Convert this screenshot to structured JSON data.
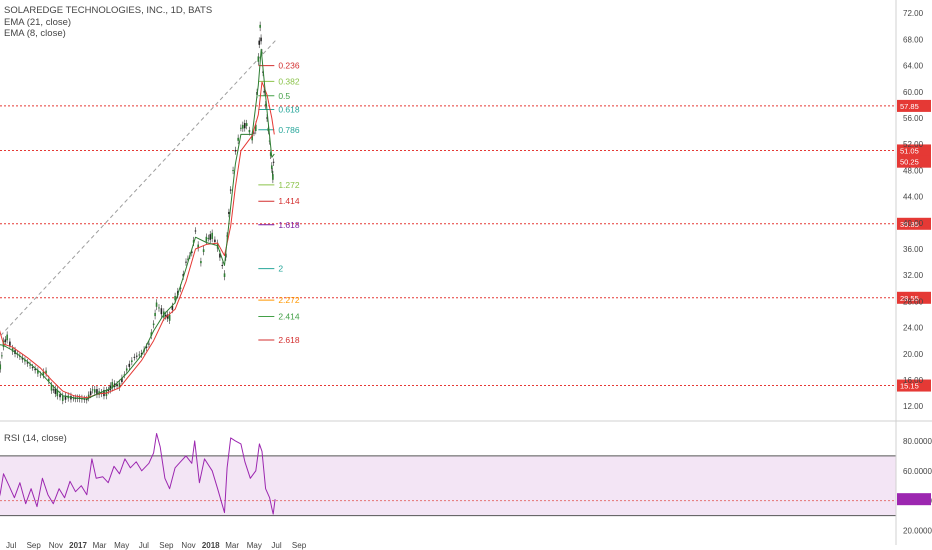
{
  "legend": {
    "title": "SOLAREDGE TECHNOLOGIES, INC., 1D, BATS",
    "ema21": "EMA (21, close)",
    "ema8": "EMA (8, close)",
    "rsi": "RSI (14, close)"
  },
  "chart_data": {
    "type": "line",
    "title": "SOLAREDGE TECHNOLOGIES, INC., 1D, BATS",
    "x_ticks": [
      "Jul",
      "Sep",
      "Nov",
      "2017",
      "Mar",
      "May",
      "Jul",
      "Sep",
      "Nov",
      "2018",
      "Mar",
      "May",
      "Jul",
      "Sep"
    ],
    "y_ticks": [
      "72.00",
      "68.00",
      "64.00",
      "60.00",
      "56.00",
      "52.00",
      "48.00",
      "44.00",
      "40.00",
      "36.00",
      "32.00",
      "28.00",
      "24.00",
      "20.00",
      "16.00",
      "12.00"
    ],
    "ylim": [
      10.5,
      72.8
    ],
    "price_series": {
      "name": "SEDG close",
      "points": [
        [
          "2016-05-20",
          20.8
        ],
        [
          "2016-06-01",
          18.0
        ],
        [
          "2016-06-10",
          21.5
        ],
        [
          "2016-06-20",
          22.5
        ],
        [
          "2016-07-05",
          20.6
        ],
        [
          "2016-07-25",
          19.6
        ],
        [
          "2016-08-15",
          18.6
        ],
        [
          "2016-09-05",
          17.6
        ],
        [
          "2016-09-20",
          16.8
        ],
        [
          "2016-10-05",
          17.2
        ],
        [
          "2016-10-20",
          14.8
        ],
        [
          "2016-11-05",
          14.0
        ],
        [
          "2016-11-20",
          13.2
        ],
        [
          "2016-12-05",
          13.4
        ],
        [
          "2016-12-20",
          13.2
        ],
        [
          "2017-01-05",
          13.2
        ],
        [
          "2017-01-25",
          13.0
        ],
        [
          "2017-02-10",
          14.5
        ],
        [
          "2017-02-28",
          14.0
        ],
        [
          "2017-03-20",
          14.0
        ],
        [
          "2017-04-05",
          15.2
        ],
        [
          "2017-04-25",
          15.2
        ],
        [
          "2017-05-15",
          17.6
        ],
        [
          "2017-06-05",
          19.5
        ],
        [
          "2017-06-25",
          20.0
        ],
        [
          "2017-07-15",
          21.5
        ],
        [
          "2017-07-28",
          24.5
        ],
        [
          "2017-08-05",
          27.5
        ],
        [
          "2017-08-25",
          26.0
        ],
        [
          "2017-09-10",
          25.5
        ],
        [
          "2017-09-25",
          28.5
        ],
        [
          "2017-10-10",
          30.0
        ],
        [
          "2017-10-25",
          34.0
        ],
        [
          "2017-11-10",
          35.5
        ],
        [
          "2017-11-20",
          38.8
        ],
        [
          "2017-12-05",
          34.0
        ],
        [
          "2017-12-20",
          37.5
        ],
        [
          "2018-01-05",
          38.0
        ],
        [
          "2018-01-20",
          36.5
        ],
        [
          "2018-02-08",
          32.0
        ],
        [
          "2018-02-15",
          38.0
        ],
        [
          "2018-02-25",
          45.0
        ],
        [
          "2018-03-10",
          51.0
        ],
        [
          "2018-03-25",
          54.5
        ],
        [
          "2018-04-10",
          55.0
        ],
        [
          "2018-04-25",
          53.0
        ],
        [
          "2018-05-05",
          54.5
        ],
        [
          "2018-05-12",
          65.0
        ],
        [
          "2018-05-17",
          70.0
        ],
        [
          "2018-05-22",
          66.0
        ],
        [
          "2018-05-28",
          60.0
        ],
        [
          "2018-06-05",
          56.0
        ],
        [
          "2018-06-12",
          52.5
        ],
        [
          "2018-06-18",
          48.5
        ],
        [
          "2018-06-21",
          47.0
        ],
        [
          "2018-06-25",
          51.5
        ]
      ]
    },
    "ema21_series": {
      "name": "EMA (21, close)",
      "color": "#e53935",
      "points": [
        [
          "2016-05-20",
          25.5
        ],
        [
          "2016-06-10",
          21.5
        ],
        [
          "2016-07-05",
          21.0
        ],
        [
          "2016-08-15",
          19.4
        ],
        [
          "2016-09-20",
          17.8
        ],
        [
          "2016-10-20",
          16.0
        ],
        [
          "2016-11-20",
          14.3
        ],
        [
          "2016-12-20",
          13.6
        ],
        [
          "2017-01-25",
          13.3
        ],
        [
          "2017-02-28",
          13.9
        ],
        [
          "2017-03-20",
          14.0
        ],
        [
          "2017-04-25",
          14.8
        ],
        [
          "2017-05-15",
          16.2
        ],
        [
          "2017-06-25",
          19.0
        ],
        [
          "2017-07-28",
          22.0
        ],
        [
          "2017-08-25",
          25.3
        ],
        [
          "2017-09-25",
          26.8
        ],
        [
          "2017-10-25",
          31.0
        ],
        [
          "2017-11-20",
          36.0
        ],
        [
          "2017-12-20",
          36.7
        ],
        [
          "2018-01-20",
          36.9
        ],
        [
          "2018-02-08",
          35.0
        ],
        [
          "2018-02-25",
          39.5
        ],
        [
          "2018-03-10",
          45.5
        ],
        [
          "2018-03-25",
          51.0
        ],
        [
          "2018-04-25",
          53.3
        ],
        [
          "2018-05-12",
          56.5
        ],
        [
          "2018-05-22",
          61.5
        ],
        [
          "2018-06-05",
          59.5
        ],
        [
          "2018-06-18",
          56.0
        ],
        [
          "2018-06-25",
          53.5
        ]
      ]
    },
    "ema8_series": {
      "name": "EMA (8, close)",
      "color": "#2e7d32",
      "points": [
        [
          "2016-05-20",
          21.5
        ],
        [
          "2016-06-10",
          21.3
        ],
        [
          "2016-07-05",
          20.5
        ],
        [
          "2016-08-15",
          18.8
        ],
        [
          "2016-09-20",
          17.1
        ],
        [
          "2016-10-20",
          15.3
        ],
        [
          "2016-11-20",
          13.6
        ],
        [
          "2016-12-20",
          13.3
        ],
        [
          "2017-01-25",
          13.1
        ],
        [
          "2017-02-28",
          14.0
        ],
        [
          "2017-04-05",
          14.8
        ],
        [
          "2017-05-15",
          17.0
        ],
        [
          "2017-06-25",
          19.8
        ],
        [
          "2017-07-28",
          23.5
        ],
        [
          "2017-08-25",
          26.0
        ],
        [
          "2017-09-25",
          27.8
        ],
        [
          "2017-10-25",
          33.0
        ],
        [
          "2017-11-20",
          37.8
        ],
        [
          "2017-12-20",
          37.0
        ],
        [
          "2018-01-20",
          36.5
        ],
        [
          "2018-02-08",
          33.5
        ],
        [
          "2018-02-25",
          42.5
        ],
        [
          "2018-03-10",
          49.0
        ],
        [
          "2018-03-25",
          53.5
        ],
        [
          "2018-04-25",
          53.5
        ],
        [
          "2018-05-12",
          61.0
        ],
        [
          "2018-05-20",
          66.5
        ],
        [
          "2018-06-05",
          57.0
        ],
        [
          "2018-06-18",
          50.0
        ],
        [
          "2018-06-25",
          50.5
        ]
      ]
    },
    "horizontal_levels": [
      {
        "value": 57.85,
        "label": "57.85"
      },
      {
        "value": 51.05,
        "label": "51.05"
      },
      {
        "value": 39.85,
        "label": "39.85"
      },
      {
        "value": 28.55,
        "label": "28.55"
      },
      {
        "value": 15.15,
        "label": "15.15"
      }
    ],
    "price_tags": [
      {
        "value": 51.05,
        "label": "51.05"
      },
      {
        "value": 50.25,
        "label": "50.25"
      }
    ],
    "trendline": {
      "from": [
        "2016-05-20",
        22.0
      ],
      "to": [
        "2018-07-01",
        68.0
      ]
    },
    "fib_levels": [
      {
        "ratio": "0.236",
        "value": 64.0,
        "color": "#d32f2f"
      },
      {
        "ratio": "0.382",
        "value": 61.6,
        "color": "#8bc34a"
      },
      {
        "ratio": "0.5",
        "value": 59.4,
        "color": "#43a047"
      },
      {
        "ratio": "0.618",
        "value": 57.3,
        "color": "#26a69a"
      },
      {
        "ratio": "0.786",
        "value": 54.2,
        "color": "#26a69a"
      },
      {
        "ratio": "1.272",
        "value": 45.8,
        "color": "#8bc34a"
      },
      {
        "ratio": "1.414",
        "value": 43.3,
        "color": "#d32f2f"
      },
      {
        "ratio": "1.618",
        "value": 39.7,
        "color": "#7b1fa2"
      },
      {
        "ratio": "2",
        "value": 33.0,
        "color": "#26a69a"
      },
      {
        "ratio": "2.272",
        "value": 28.2,
        "color": "#ff9800"
      },
      {
        "ratio": "2.414",
        "value": 25.7,
        "color": "#43a047"
      },
      {
        "ratio": "2.618",
        "value": 22.1,
        "color": "#d32f2f"
      }
    ],
    "rsi": {
      "name": "RSI (14, close)",
      "color": "#9c27b0",
      "y_ticks": [
        "80.0000",
        "60.0000",
        "40.0000",
        "20.0000"
      ],
      "ylim": [
        15,
        90
      ],
      "bands": [
        70,
        30
      ],
      "level_line": 40,
      "points": [
        [
          "2016-05-20",
          33
        ],
        [
          "2016-06-01",
          45
        ],
        [
          "2016-06-10",
          58
        ],
        [
          "2016-06-25",
          50
        ],
        [
          "2016-07-10",
          42
        ],
        [
          "2016-07-25",
          52
        ],
        [
          "2016-08-10",
          38
        ],
        [
          "2016-08-25",
          48
        ],
        [
          "2016-09-10",
          36
        ],
        [
          "2016-09-25",
          55
        ],
        [
          "2016-10-10",
          44
        ],
        [
          "2016-10-25",
          38
        ],
        [
          "2016-11-10",
          48
        ],
        [
          "2016-11-25",
          42
        ],
        [
          "2016-12-10",
          53
        ],
        [
          "2016-12-25",
          46
        ],
        [
          "2017-01-10",
          50
        ],
        [
          "2017-01-25",
          44
        ],
        [
          "2017-02-08",
          68
        ],
        [
          "2017-02-20",
          55
        ],
        [
          "2017-03-10",
          56
        ],
        [
          "2017-03-25",
          52
        ],
        [
          "2017-04-10",
          63
        ],
        [
          "2017-04-25",
          58
        ],
        [
          "2017-05-10",
          68
        ],
        [
          "2017-05-25",
          62
        ],
        [
          "2017-06-10",
          66
        ],
        [
          "2017-06-25",
          60
        ],
        [
          "2017-07-15",
          65
        ],
        [
          "2017-07-28",
          72
        ],
        [
          "2017-08-05",
          85
        ],
        [
          "2017-08-15",
          76
        ],
        [
          "2017-08-28",
          55
        ],
        [
          "2017-09-10",
          48
        ],
        [
          "2017-09-25",
          62
        ],
        [
          "2017-10-10",
          66
        ],
        [
          "2017-10-25",
          70
        ],
        [
          "2017-11-10",
          65
        ],
        [
          "2017-11-18",
          80
        ],
        [
          "2017-12-01",
          52
        ],
        [
          "2017-12-15",
          68
        ],
        [
          "2018-01-05",
          60
        ],
        [
          "2018-01-20",
          48
        ],
        [
          "2018-02-08",
          32
        ],
        [
          "2018-02-15",
          62
        ],
        [
          "2018-02-25",
          82
        ],
        [
          "2018-03-10",
          80
        ],
        [
          "2018-03-25",
          78
        ],
        [
          "2018-04-05",
          66
        ],
        [
          "2018-04-20",
          55
        ],
        [
          "2018-05-05",
          60
        ],
        [
          "2018-05-15",
          78
        ],
        [
          "2018-05-22",
          73
        ],
        [
          "2018-06-01",
          48
        ],
        [
          "2018-06-12",
          42
        ],
        [
          "2018-06-18",
          35
        ],
        [
          "2018-06-22",
          31
        ],
        [
          "2018-06-27",
          41
        ]
      ]
    }
  }
}
